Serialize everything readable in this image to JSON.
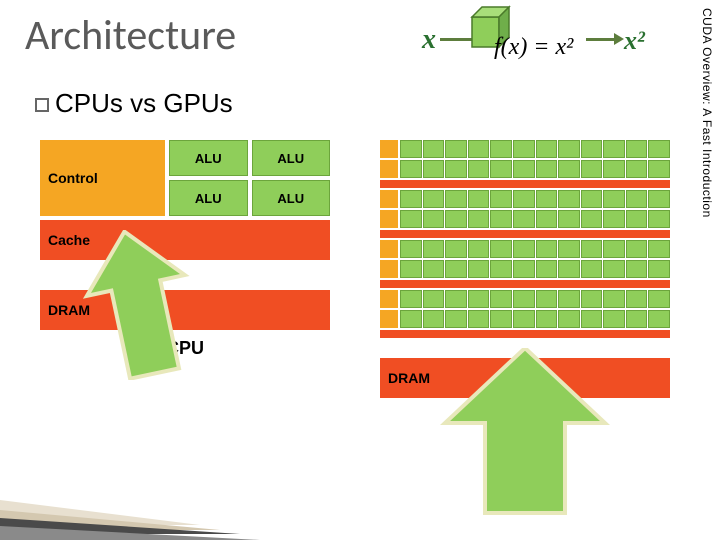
{
  "title": "Architecture",
  "subtitle": "CPUs vs GPUs",
  "sidebar_text": "CUDA Overview: A Fast Introduction",
  "header_illustration": {
    "input_symbol": "x",
    "function_text": "f(x) = x²",
    "output_symbol": "x²",
    "cube_fill": "#8fce5a",
    "cube_stroke": "#4a7a2a",
    "arrow_color": "#5d7d3d",
    "symbol_color": "#2a7030"
  },
  "cpu": {
    "control_label": "Control",
    "alu_label": "ALU",
    "alu_rows": 2,
    "alu_cols": 2,
    "cache_label": "Cache",
    "dram_label": "DRAM",
    "caption": "CPU",
    "colors": {
      "control": "#f5a623",
      "alu": "#8fce5a",
      "alu_border": "#6ca53c",
      "cache": "#f04e23",
      "dram": "#f04e23"
    }
  },
  "gpu": {
    "compute_rows": 8,
    "compute_cols": 12,
    "dram_label": "DRAM",
    "colors": {
      "control": "#f5a623",
      "cell": "#8fce5a",
      "cell_border": "#6ca53c",
      "cache": "#f04e23",
      "dram": "#f04e23"
    }
  },
  "arrows": {
    "cpu_arrow": {
      "fill": "#8fce5a",
      "stroke": "#e8e8bb",
      "stroke_width": 4,
      "width": 120,
      "height": 150
    },
    "gpu_arrow": {
      "fill": "#8fce5a",
      "stroke": "#e8e8bb",
      "stroke_width": 4,
      "width": 170,
      "height": 170
    }
  },
  "decoration": {
    "stripe_colors": [
      "#e8e0d0",
      "#d4c8b0",
      "#4a4a4a",
      "#8a8a8a"
    ]
  }
}
